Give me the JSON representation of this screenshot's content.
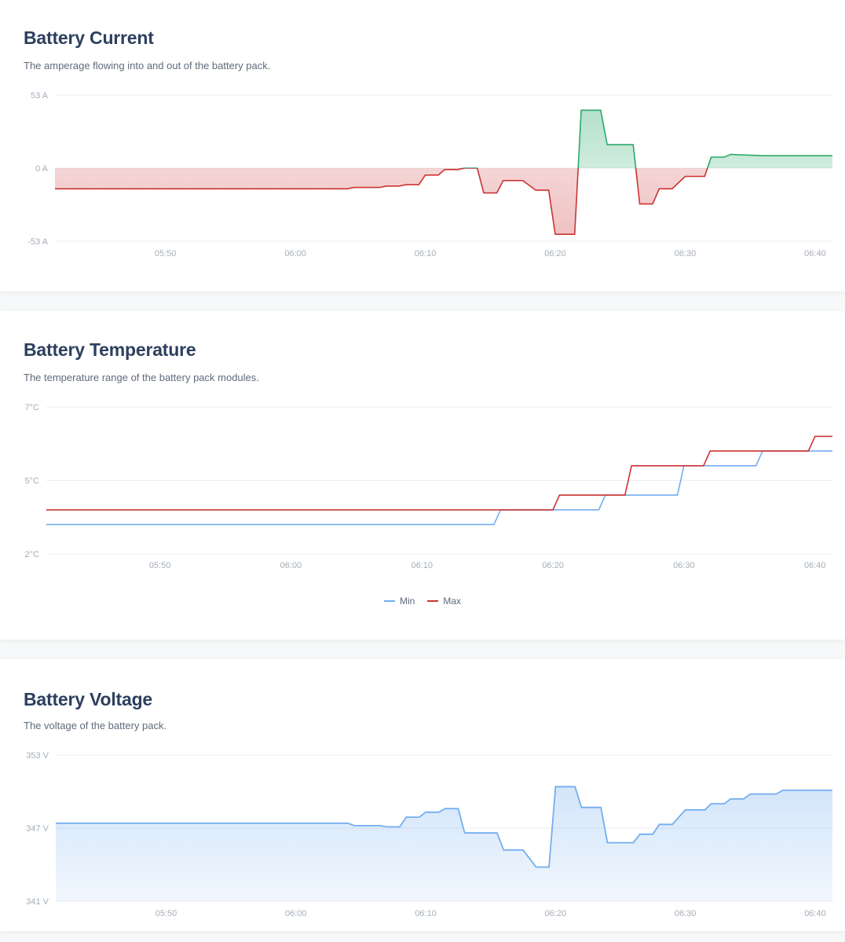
{
  "charts": [
    {
      "title": "Battery Current",
      "description": "The amperage flowing into and out of the battery pack."
    },
    {
      "title": "Battery Temperature",
      "description": "The temperature range of the battery pack modules."
    },
    {
      "title": "Battery Voltage",
      "description": "The voltage of the battery pack."
    }
  ],
  "legend": {
    "min_label": "Min",
    "max_label": "Max"
  },
  "colors": {
    "positive": "#2aa86a",
    "negative": "#cc3333",
    "min": "#74aef0",
    "max": "#cc3333",
    "voltage": "#74aef0"
  },
  "chart_data": [
    {
      "type": "area",
      "title": "Battery Current",
      "x_tick_labels": [
        "05:50",
        "06:00",
        "06:10",
        "06:20",
        "06:30",
        "06:40"
      ],
      "y_tick_labels": [
        "53 A",
        "0 A",
        "-53 A"
      ],
      "xlim": [
        "05:41:30",
        "06:41:20"
      ],
      "ylim": [
        -53,
        53
      ],
      "grid": true,
      "series": [
        {
          "x": [
            "05:41:30",
            "06:04:00",
            "06:04:30",
            "06:06:30",
            "06:07:00",
            "06:08:00",
            "06:08:30",
            "06:09:30",
            "06:10:00",
            "06:11:00",
            "06:11:30",
            "06:12:30",
            "06:13:00",
            "06:14:00",
            "06:14:30",
            "06:15:30",
            "06:16:00",
            "06:17:30",
            "06:18:30",
            "06:19:30",
            "06:20:00",
            "06:21:30",
            "06:22:00",
            "06:23:30",
            "06:24:00",
            "06:26:00",
            "06:26:30",
            "06:27:30",
            "06:28:00",
            "06:29:00",
            "06:30:00",
            "06:31:30",
            "06:32:00",
            "06:33:00",
            "06:33:30",
            "06:36:00",
            "06:41:20"
          ],
          "y": [
            -15,
            -15,
            -14,
            -14,
            -13,
            -13,
            -12,
            -12,
            -5,
            -5,
            -1,
            -1,
            0,
            0,
            -18,
            -18,
            -9,
            -9,
            -16,
            -16,
            -48,
            -48,
            42,
            42,
            17,
            17,
            -26,
            -26,
            -15,
            -15,
            -6,
            -6,
            8,
            8,
            10,
            9,
            9
          ]
        }
      ]
    },
    {
      "type": "line",
      "title": "Battery Temperature",
      "x_tick_labels": [
        "05:50",
        "06:00",
        "06:10",
        "06:20",
        "06:30",
        "06:40"
      ],
      "y_tick_labels": [
        "7°C",
        "5°C",
        "2°C"
      ],
      "xlim": [
        "05:41:20",
        "06:41:20"
      ],
      "ylim": [
        2,
        7
      ],
      "grid": true,
      "series": [
        {
          "name": "Min",
          "x": [
            "05:41:20",
            "06:15:30",
            "06:16:00",
            "06:23:30",
            "06:24:00",
            "06:29:30",
            "06:30:00",
            "06:35:30",
            "06:36:00",
            "06:41:20"
          ],
          "y": [
            3.0,
            3.0,
            3.5,
            3.5,
            4.0,
            4.0,
            5.0,
            5.0,
            5.5,
            5.5
          ]
        },
        {
          "name": "Max",
          "x": [
            "05:41:20",
            "06:20:00",
            "06:20:30",
            "06:25:30",
            "06:26:00",
            "06:31:30",
            "06:32:00",
            "06:39:30",
            "06:40:00",
            "06:41:20"
          ],
          "y": [
            3.5,
            3.5,
            4.0,
            4.0,
            5.0,
            5.0,
            5.5,
            5.5,
            6.0,
            6.0
          ]
        }
      ]
    },
    {
      "type": "area",
      "title": "Battery Voltage",
      "x_tick_labels": [
        "05:50",
        "06:00",
        "06:10",
        "06:20",
        "06:30",
        "06:40"
      ],
      "y_tick_labels": [
        "353 V",
        "347 V",
        "341 V"
      ],
      "xlim": [
        "05:41:30",
        "06:41:20"
      ],
      "ylim": [
        341,
        353
      ],
      "grid": true,
      "series": [
        {
          "x": [
            "05:41:30",
            "06:04:00",
            "06:04:30",
            "06:06:30",
            "06:07:00",
            "06:08:00",
            "06:08:30",
            "06:09:30",
            "06:10:00",
            "06:11:00",
            "06:11:30",
            "06:12:30",
            "06:13:00",
            "06:14:00",
            "06:14:30",
            "06:15:30",
            "06:16:00",
            "06:17:30",
            "06:18:30",
            "06:19:30",
            "06:20:00",
            "06:21:30",
            "06:22:00",
            "06:23:30",
            "06:24:00",
            "06:26:00",
            "06:26:30",
            "06:27:30",
            "06:28:00",
            "06:29:00",
            "06:30:00",
            "06:31:30",
            "06:32:00",
            "06:33:00",
            "06:33:30",
            "06:34:30",
            "06:35:00",
            "06:37:00",
            "06:37:30",
            "06:38:30",
            "06:39:00",
            "06:41:20"
          ],
          "y": [
            347.4,
            347.4,
            347.2,
            347.2,
            347.1,
            347.1,
            347.9,
            347.9,
            348.3,
            348.3,
            348.6,
            348.6,
            346.6,
            346.6,
            346.6,
            346.6,
            345.2,
            345.2,
            343.8,
            343.8,
            350.4,
            350.4,
            348.7,
            348.7,
            345.8,
            345.8,
            346.5,
            346.5,
            347.3,
            347.3,
            348.5,
            348.5,
            349.0,
            349.0,
            349.4,
            349.4,
            349.8,
            349.8,
            350.1,
            350.1,
            350.1,
            350.1
          ]
        }
      ]
    }
  ]
}
